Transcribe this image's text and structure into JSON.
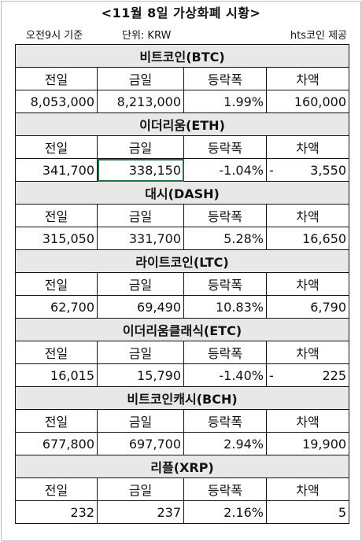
{
  "title": "<11월 8일 가상화폐 시황>",
  "subtitle": {
    "left": "오전9시 기준",
    "middle": "단위: KRW",
    "right": "hts코인 제공"
  },
  "headers": [
    "전일",
    "금일",
    "등락폭",
    "차액"
  ],
  "coins": [
    {
      "name": "비트코인(BTC)",
      "prev": "8,053,000",
      "today": "8,213,000",
      "change": "1.99%",
      "diff_sign": "",
      "diff": "160,000"
    },
    {
      "name": "이더리움(ETH)",
      "prev": "341,700",
      "today": "338,150",
      "change": "-1.04%",
      "diff_sign": "-",
      "diff": "3,550"
    },
    {
      "name": "대시(DASH)",
      "prev": "315,050",
      "today": "331,700",
      "change": "5.28%",
      "diff_sign": "",
      "diff": "16,650"
    },
    {
      "name": "라이트코인(LTC)",
      "prev": "62,700",
      "today": "69,490",
      "change": "10.83%",
      "diff_sign": "",
      "diff": "6,790"
    },
    {
      "name": "이더리움클래식(ETC)",
      "prev": "16,015",
      "today": "15,790",
      "change": "-1.40%",
      "diff_sign": "-",
      "diff": "225"
    },
    {
      "name": "비트코인캐시(BCH)",
      "prev": "677,800",
      "today": "697,700",
      "change": "2.94%",
      "diff_sign": "",
      "diff": "19,900"
    },
    {
      "name": "리플(XRP)",
      "prev": "232",
      "today": "237",
      "change": "2.16%",
      "diff_sign": "",
      "diff": "5"
    }
  ]
}
